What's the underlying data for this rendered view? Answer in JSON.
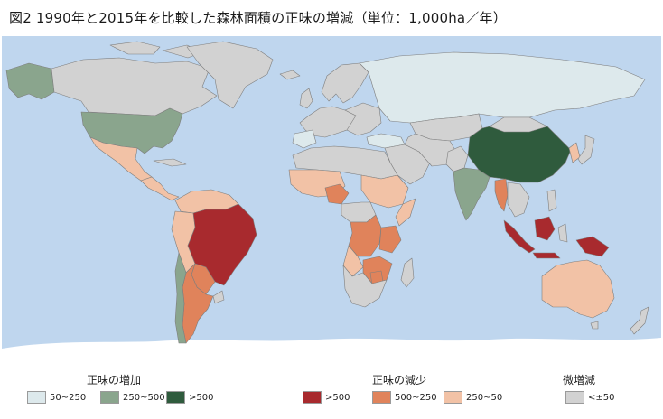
{
  "title": "図2 1990年と2015年を比較した森林面積の正味の増減（単位：1,000ha／年）",
  "colors": {
    "ocean": "#bfd6ee",
    "antarctica": "#ffffff",
    "border": "#7e7e7e",
    "gain_50_250": "#dde9ec",
    "gain_250_500": "#8aa58d",
    "gain_gt500": "#2f5b3d",
    "loss_gt500": "#a82a2e",
    "loss_500_250": "#e0835b",
    "loss_250_50": "#f2c2a6",
    "minor": "#d2d2d2"
  },
  "legend": {
    "gain": {
      "title": "正味の増加",
      "items": [
        {
          "label": "50~250",
          "color": "#dde9ec"
        },
        {
          "label": "250~500",
          "color": "#8aa58d"
        },
        {
          "label": ">500",
          "color": "#2f5b3d"
        }
      ]
    },
    "loss": {
      "title": "正味の減少",
      "items": [
        {
          "label": ">500",
          "color": "#a82a2e"
        },
        {
          "label": "500~250",
          "color": "#e0835b"
        },
        {
          "label": "250~50",
          "color": "#f2c2a6"
        }
      ]
    },
    "minor": {
      "title": "微増減",
      "items": [
        {
          "label": "<±50",
          "color": "#d2d2d2"
        }
      ]
    }
  }
}
